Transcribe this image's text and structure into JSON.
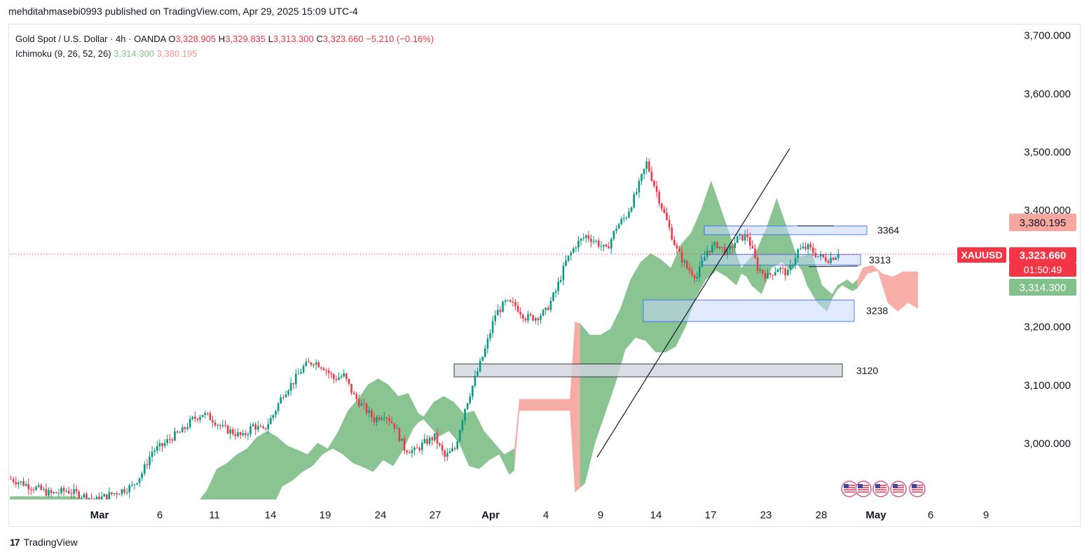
{
  "header": {
    "published": "mehditahmasebi0993 published on TradingView.com, Apr 29, 2025 15:09 UTC-4"
  },
  "legend": {
    "symbol": "Gold Spot / U.S. Dollar · 4h · OANDA",
    "o_label": "O",
    "o_value": "3,328.905",
    "h_label": "H",
    "h_value": "3,329.835",
    "l_label": "L",
    "l_value": "3,313.300",
    "c_label": "C",
    "c_value": "3,323.660",
    "change": "−5.210 (−0.16%)",
    "indicator": "Ichimoku (9, 26, 52, 26)",
    "ind_value1": "3,314.300",
    "ind_value2": "3,380.195"
  },
  "footer": {
    "brand": "TradingView",
    "logo": "17"
  },
  "colors": {
    "bull": "#089981",
    "bear": "#f23645",
    "cloud_green": "#83c18c",
    "cloud_red": "#f7a6a0",
    "zone_blue": "#c9d8fb",
    "zone_grey": "#d1d4dc"
  },
  "chart_data": {
    "type": "candlestick",
    "ylim": [
      2935,
      3725
    ],
    "y_ticks": [
      "3,000.000",
      "3,100.000",
      "3,200.000",
      "3,300.000",
      "3,400.000",
      "3,500.000",
      "3,600.000",
      "3,700.000"
    ],
    "y_tick_values": [
      3000,
      3100,
      3200,
      3300,
      3400,
      3500,
      3600,
      3700
    ],
    "x_ticks": [
      "Mar",
      "6",
      "11",
      "14",
      "19",
      "24",
      "27",
      "Apr",
      "4",
      "9",
      "14",
      "17",
      "23",
      "28",
      "May",
      "6",
      "9"
    ],
    "price_labels": [
      {
        "text": "3,380.195",
        "value": 3380.195,
        "kind": "cloud_top"
      },
      {
        "text": "XAUUSD",
        "value": 3323.66,
        "kind": "symbol"
      },
      {
        "text": "3,323.660",
        "value": 3323.66,
        "kind": "last"
      },
      {
        "text": "01:50:49",
        "value": 3323.66,
        "kind": "countdown"
      },
      {
        "text": "3,314.300",
        "value": 3314.3,
        "kind": "tenkan"
      }
    ],
    "zones": [
      {
        "label": "3364",
        "low": 3357,
        "high": 3372,
        "color": "blue"
      },
      {
        "label": "3313",
        "low": 3305,
        "high": 3323,
        "color": "blue"
      },
      {
        "label": "3238",
        "low": 3208,
        "high": 3245,
        "color": "blue"
      },
      {
        "label": "3120",
        "low": 3113,
        "high": 3135,
        "color": "grey"
      }
    ],
    "price_path": [
      [
        0,
        2938
      ],
      [
        8,
        2925
      ],
      [
        16,
        2912
      ],
      [
        22,
        2918
      ],
      [
        28,
        2910
      ],
      [
        34,
        2902
      ],
      [
        40,
        2912
      ],
      [
        48,
        2925
      ],
      [
        52,
        2948
      ],
      [
        56,
        2985
      ],
      [
        60,
        2995
      ],
      [
        64,
        3010
      ],
      [
        68,
        3020
      ],
      [
        72,
        3040
      ],
      [
        76,
        3050
      ],
      [
        80,
        3040
      ],
      [
        84,
        3025
      ],
      [
        88,
        3018
      ],
      [
        92,
        3010
      ],
      [
        96,
        3030
      ],
      [
        100,
        3020
      ],
      [
        104,
        3048
      ],
      [
        108,
        3085
      ],
      [
        112,
        3105
      ],
      [
        116,
        3130
      ],
      [
        120,
        3140
      ],
      [
        124,
        3130
      ],
      [
        128,
        3110
      ],
      [
        132,
        3115
      ],
      [
        136,
        3080
      ],
      [
        140,
        3060
      ],
      [
        144,
        3040
      ],
      [
        148,
        3050
      ],
      [
        152,
        3030
      ],
      [
        156,
        2990
      ],
      [
        160,
        2985
      ],
      [
        164,
        3000
      ],
      [
        168,
        3010
      ],
      [
        172,
        2975
      ],
      [
        176,
        2990
      ],
      [
        180,
        3060
      ],
      [
        184,
        3110
      ],
      [
        188,
        3160
      ],
      [
        192,
        3220
      ],
      [
        196,
        3240
      ],
      [
        200,
        3235
      ],
      [
        204,
        3215
      ],
      [
        208,
        3215
      ],
      [
        212,
        3225
      ],
      [
        216,
        3260
      ],
      [
        220,
        3310
      ],
      [
        224,
        3340
      ],
      [
        228,
        3355
      ],
      [
        232,
        3345
      ],
      [
        236,
        3330
      ],
      [
        240,
        3370
      ],
      [
        244,
        3390
      ],
      [
        248,
        3430
      ],
      [
        252,
        3480
      ],
      [
        256,
        3430
      ],
      [
        260,
        3380
      ],
      [
        264,
        3330
      ],
      [
        268,
        3300
      ],
      [
        272,
        3285
      ],
      [
        276,
        3330
      ],
      [
        280,
        3340
      ],
      [
        284,
        3325
      ],
      [
        288,
        3350
      ],
      [
        292,
        3355
      ],
      [
        296,
        3300
      ],
      [
        300,
        3285
      ],
      [
        304,
        3300
      ],
      [
        308,
        3290
      ],
      [
        312,
        3330
      ],
      [
        316,
        3335
      ],
      [
        320,
        3320
      ],
      [
        324,
        3315
      ],
      [
        328,
        3323.66
      ]
    ],
    "trendline": {
      "from": [
        180,
        2975
      ],
      "to": [
        274,
        3505
      ]
    }
  }
}
